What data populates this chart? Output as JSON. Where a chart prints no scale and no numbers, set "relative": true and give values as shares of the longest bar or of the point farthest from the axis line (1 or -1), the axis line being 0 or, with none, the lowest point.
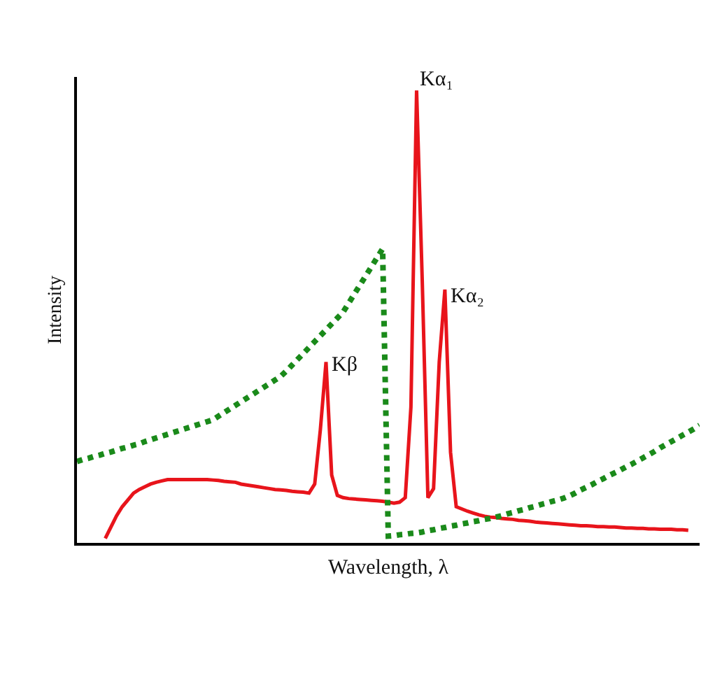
{
  "chart_data": {
    "type": "line",
    "relative": true,
    "xlabel": "Wavelength, λ",
    "ylabel": "Intensity",
    "categories": [
      null,
      null,
      null,
      null,
      null,
      null,
      null,
      null,
      null,
      null,
      null,
      null,
      null,
      null,
      null,
      null,
      null,
      null,
      null,
      null,
      null,
      null,
      null,
      null,
      null,
      null,
      null,
      null,
      null,
      null,
      null,
      null,
      null,
      null,
      null,
      null,
      null,
      null,
      null,
      null,
      null,
      null,
      null,
      null,
      null,
      null,
      null,
      null,
      null,
      null,
      null,
      null,
      null,
      null,
      null,
      null,
      null,
      null,
      null,
      null,
      null,
      null,
      null,
      null,
      null,
      null,
      null,
      null,
      null,
      null,
      null,
      null,
      null,
      null,
      null,
      null,
      null,
      null,
      null,
      null,
      null,
      null,
      null,
      null,
      null,
      null,
      null,
      null,
      null,
      null,
      null,
      null,
      null,
      null,
      null,
      null,
      null,
      null,
      null,
      null,
      null,
      null,
      null,
      null,
      null,
      null,
      null,
      null,
      null,
      null,
      null
    ],
    "series": [
      {
        "color": "#e8141b",
        "line_style": "solid",
        "values": [
          null,
          null,
          null,
          null,
          null,
          0.01,
          0.035,
          0.06,
          0.08,
          0.095,
          0.11,
          0.118,
          0.124,
          0.13,
          0.134,
          0.137,
          0.14,
          0.14,
          0.14,
          0.14,
          0.14,
          0.14,
          0.14,
          0.14,
          0.139,
          0.138,
          0.136,
          0.135,
          0.134,
          0.13,
          0.128,
          0.126,
          0.124,
          0.122,
          0.12,
          0.118,
          0.117,
          0.116,
          0.114,
          0.113,
          0.112,
          0.11,
          0.13,
          0.25,
          0.4,
          0.15,
          0.105,
          0.1,
          0.098,
          0.097,
          0.096,
          0.095,
          0.094,
          0.093,
          0.092,
          0.09,
          0.088,
          0.09,
          0.1,
          0.3,
          1.0,
          0.58,
          0.1,
          0.12,
          0.4,
          0.56,
          0.2,
          0.08,
          0.075,
          0.07,
          0.066,
          0.062,
          0.059,
          0.057,
          0.056,
          0.054,
          0.053,
          0.052,
          0.05,
          0.049,
          0.048,
          0.046,
          0.045,
          0.044,
          0.043,
          0.042,
          0.041,
          0.04,
          0.039,
          0.038,
          0.038,
          0.037,
          0.036,
          0.036,
          0.035,
          0.035,
          0.034,
          0.033,
          0.033,
          0.032,
          0.032,
          0.031,
          0.031,
          0.03,
          0.03,
          0.03,
          0.029,
          0.029,
          0.028,
          null,
          null
        ]
      },
      {
        "color": "#1a8a1a",
        "line_style": "dotted",
        "values": [
          0.18,
          0.184,
          0.187,
          0.191,
          0.194,
          0.198,
          0.201,
          0.205,
          0.209,
          0.212,
          0.216,
          0.219,
          0.224,
          0.228,
          0.232,
          0.236,
          0.24,
          0.244,
          0.248,
          0.252,
          0.256,
          0.26,
          0.264,
          0.268,
          0.272,
          0.28,
          0.288,
          0.296,
          0.304,
          0.312,
          0.32,
          0.328,
          0.336,
          0.344,
          0.352,
          0.36,
          0.368,
          0.38,
          0.393,
          0.406,
          0.419,
          0.432,
          0.445,
          0.458,
          0.471,
          0.484,
          0.497,
          0.51,
          0.53,
          0.55,
          0.57,
          0.59,
          0.61,
          0.63,
          0.65,
          0.015,
          0.016,
          0.018,
          0.019,
          0.021,
          0.022,
          0.024,
          0.027,
          0.029,
          0.032,
          0.034,
          0.037,
          0.039,
          0.042,
          0.044,
          0.047,
          0.049,
          0.052,
          0.054,
          0.057,
          0.06,
          0.064,
          0.067,
          0.071,
          0.074,
          0.078,
          0.081,
          0.085,
          0.088,
          0.092,
          0.095,
          0.099,
          0.104,
          0.11,
          0.117,
          0.123,
          0.129,
          0.136,
          0.142,
          0.149,
          0.155,
          0.161,
          0.168,
          0.174,
          0.181,
          0.188,
          0.195,
          0.202,
          0.21,
          0.217,
          0.224,
          0.231,
          0.238,
          0.245,
          0.252,
          0.26
        ]
      }
    ],
    "annotations": [
      "Kα₁",
      "Kα₂",
      "Kβ"
    ]
  }
}
